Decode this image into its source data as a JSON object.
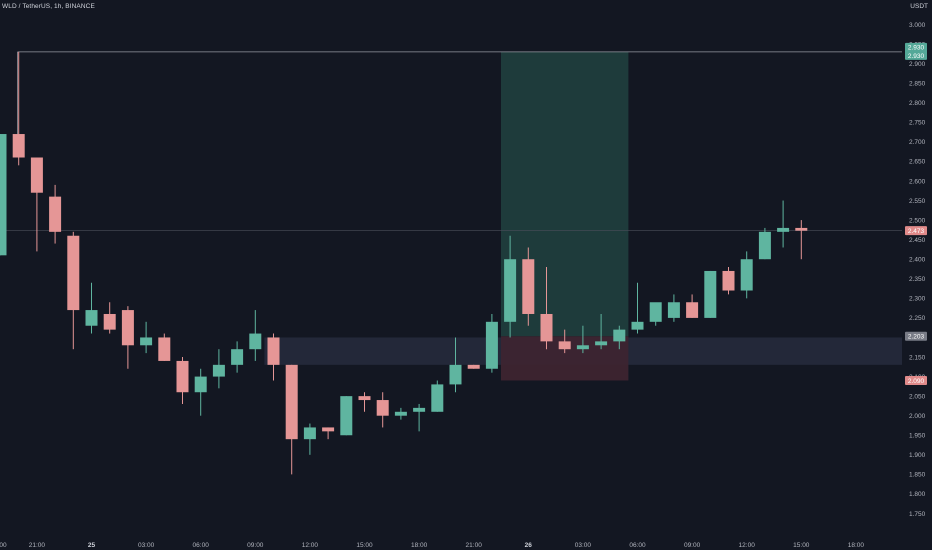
{
  "header": {
    "symbol": "WLD / TetherUS, 1h, BINANCE",
    "currency": "USDT"
  },
  "chart_data": {
    "type": "candlestick",
    "symbol": "WLD / TetherUS",
    "interval": "1h",
    "exchange": "BINANCE",
    "quote_currency": "USDT",
    "ylim": [
      1.75,
      3.0
    ],
    "y_ticks": [
      "3.000",
      "2.950",
      "2.900",
      "2.850",
      "2.800",
      "2.750",
      "2.700",
      "2.650",
      "2.600",
      "2.550",
      "2.500",
      "2.450",
      "2.400",
      "2.350",
      "2.300",
      "2.250",
      "2.200",
      "2.150",
      "2.100",
      "2.050",
      "2.000",
      "1.950",
      "1.900",
      "1.850",
      "1.800",
      "1.750"
    ],
    "x_ticks": [
      {
        "label": "00",
        "bar": -0.9
      },
      {
        "label": "21:00",
        "bar": 2
      },
      {
        "label": "25",
        "bar": 5,
        "bold": true
      },
      {
        "label": "03:00",
        "bar": 8
      },
      {
        "label": "06:00",
        "bar": 11
      },
      {
        "label": "09:00",
        "bar": 14
      },
      {
        "label": "12:00",
        "bar": 17
      },
      {
        "label": "15:00",
        "bar": 20
      },
      {
        "label": "18:00",
        "bar": 23
      },
      {
        "label": "21:00",
        "bar": 26
      },
      {
        "label": "26",
        "bar": 29,
        "bold": true
      },
      {
        "label": "03:00",
        "bar": 32
      },
      {
        "label": "06:00",
        "bar": 35
      },
      {
        "label": "09:00",
        "bar": 38
      },
      {
        "label": "12:00",
        "bar": 41
      },
      {
        "label": "15:00",
        "bar": 44
      },
      {
        "label": "18:00",
        "bar": 47
      }
    ],
    "candles": [
      {
        "o": 2.41,
        "h": 2.72,
        "l": 2.41,
        "c": 2.72
      },
      {
        "o": 2.72,
        "h": 2.93,
        "l": 2.64,
        "c": 2.66
      },
      {
        "o": 2.66,
        "h": 2.66,
        "l": 2.42,
        "c": 2.57
      },
      {
        "o": 2.56,
        "h": 2.59,
        "l": 2.44,
        "c": 2.47
      },
      {
        "o": 2.46,
        "h": 2.47,
        "l": 2.17,
        "c": 2.27
      },
      {
        "o": 2.23,
        "h": 2.34,
        "l": 2.21,
        "c": 2.27
      },
      {
        "o": 2.26,
        "h": 2.29,
        "l": 2.21,
        "c": 2.22
      },
      {
        "o": 2.27,
        "h": 2.28,
        "l": 2.12,
        "c": 2.18
      },
      {
        "o": 2.18,
        "h": 2.24,
        "l": 2.16,
        "c": 2.2
      },
      {
        "o": 2.2,
        "h": 2.21,
        "l": 2.14,
        "c": 2.14
      },
      {
        "o": 2.14,
        "h": 2.15,
        "l": 2.03,
        "c": 2.06
      },
      {
        "o": 2.06,
        "h": 2.12,
        "l": 2.0,
        "c": 2.1
      },
      {
        "o": 2.1,
        "h": 2.17,
        "l": 2.07,
        "c": 2.13
      },
      {
        "o": 2.13,
        "h": 2.19,
        "l": 2.11,
        "c": 2.17
      },
      {
        "o": 2.17,
        "h": 2.27,
        "l": 2.14,
        "c": 2.21
      },
      {
        "o": 2.2,
        "h": 2.21,
        "l": 2.09,
        "c": 2.13
      },
      {
        "o": 2.13,
        "h": 2.13,
        "l": 1.85,
        "c": 1.94
      },
      {
        "o": 1.94,
        "h": 1.98,
        "l": 1.9,
        "c": 1.97
      },
      {
        "o": 1.97,
        "h": 1.97,
        "l": 1.94,
        "c": 1.96
      },
      {
        "o": 1.95,
        "h": 2.05,
        "l": 1.95,
        "c": 2.05
      },
      {
        "o": 2.05,
        "h": 2.06,
        "l": 2.01,
        "c": 2.04
      },
      {
        "o": 2.04,
        "h": 2.06,
        "l": 1.97,
        "c": 2.0
      },
      {
        "o": 2.0,
        "h": 2.02,
        "l": 1.99,
        "c": 2.01
      },
      {
        "o": 2.01,
        "h": 2.03,
        "l": 1.96,
        "c": 2.02
      },
      {
        "o": 2.01,
        "h": 2.09,
        "l": 2.01,
        "c": 2.08
      },
      {
        "o": 2.08,
        "h": 2.2,
        "l": 2.06,
        "c": 2.13
      },
      {
        "o": 2.13,
        "h": 2.13,
        "l": 2.12,
        "c": 2.12
      },
      {
        "o": 2.12,
        "h": 2.26,
        "l": 2.11,
        "c": 2.24
      },
      {
        "o": 2.24,
        "h": 2.46,
        "l": 2.2,
        "c": 2.4
      },
      {
        "o": 2.4,
        "h": 2.43,
        "l": 2.23,
        "c": 2.26
      },
      {
        "o": 2.26,
        "h": 2.38,
        "l": 2.17,
        "c": 2.19
      },
      {
        "o": 2.19,
        "h": 2.22,
        "l": 2.16,
        "c": 2.17
      },
      {
        "o": 2.17,
        "h": 2.23,
        "l": 2.16,
        "c": 2.18
      },
      {
        "o": 2.18,
        "h": 2.26,
        "l": 2.17,
        "c": 2.19
      },
      {
        "o": 2.19,
        "h": 2.23,
        "l": 2.17,
        "c": 2.22
      },
      {
        "o": 2.22,
        "h": 2.34,
        "l": 2.21,
        "c": 2.24
      },
      {
        "o": 2.24,
        "h": 2.28,
        "l": 2.23,
        "c": 2.29
      },
      {
        "o": 2.25,
        "h": 2.31,
        "l": 2.24,
        "c": 2.29
      },
      {
        "o": 2.29,
        "h": 2.31,
        "l": 2.25,
        "c": 2.25
      },
      {
        "o": 2.25,
        "h": 2.37,
        "l": 2.25,
        "c": 2.37
      },
      {
        "o": 2.37,
        "h": 2.38,
        "l": 2.31,
        "c": 2.32
      },
      {
        "o": 2.32,
        "h": 2.42,
        "l": 2.3,
        "c": 2.4
      },
      {
        "o": 2.4,
        "h": 2.48,
        "l": 2.4,
        "c": 2.47
      },
      {
        "o": 2.47,
        "h": 2.55,
        "l": 2.43,
        "c": 2.48
      },
      {
        "o": 2.48,
        "h": 2.5,
        "l": 2.4,
        "c": 2.473
      }
    ],
    "position": {
      "type": "long",
      "start_bar": 27.5,
      "end_bar": 34.5,
      "entry": 2.203,
      "target": 2.93,
      "stop": 2.09,
      "entry_label": "2.203",
      "target_label": "2.930",
      "stop_label": "2.090"
    },
    "support_zone": {
      "from_bar": 14.5,
      "low": 2.13,
      "high": 2.2
    },
    "horizontal_line": {
      "price": 2.93,
      "start_bar": 0.0,
      "label": "2.930"
    },
    "last_price": {
      "price": 2.473,
      "label": "2.473"
    },
    "colors": {
      "background": "#131722",
      "up": "#5fb5a0",
      "down": "#e59696",
      "axis_text": "#b2b5be",
      "profit_zone": "#1f3d3d",
      "loss_zone": "#3d2430",
      "support_zone": "#262a3c",
      "line": "#9598a1",
      "target_label_bg": "#54a898",
      "entry_label_bg": "#787b86",
      "stop_label_bg": "#e08a8a",
      "last_label_bg": "#e08a8a"
    }
  }
}
